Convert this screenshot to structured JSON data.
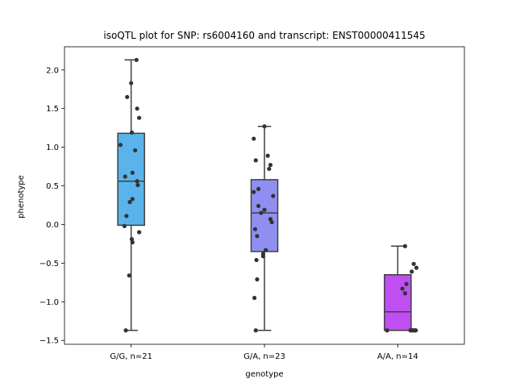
{
  "chart_data": {
    "type": "box",
    "title": "isoQTL plot for SNP: rs6004160 and transcript: ENST00000411545",
    "xlabel": "genotype",
    "ylabel": "phenotype",
    "ylim": [
      -1.55,
      2.3
    ],
    "yticks": [
      -1.5,
      -1.0,
      -0.5,
      0.0,
      0.5,
      1.0,
      1.5,
      2.0
    ],
    "ytick_labels": [
      "−1.5",
      "−1.0",
      "−0.5",
      "0.0",
      "0.5",
      "1.0",
      "1.5",
      "2.0"
    ],
    "grid": false,
    "categories": [
      "G/G, n=21",
      "G/A, n=23",
      "A/A, n=14"
    ],
    "boxes": [
      {
        "label": "G/G, n=21",
        "color": "#5ab4eb",
        "whisker_low": -1.37,
        "q1": -0.01,
        "median": 0.56,
        "q3": 1.18,
        "whisker_high": 2.13,
        "points": [
          {
            "jitter": 0.08,
            "y": 2.13
          },
          {
            "jitter": 0.0,
            "y": 1.83
          },
          {
            "jitter": -0.06,
            "y": 1.65
          },
          {
            "jitter": 0.09,
            "y": 1.5
          },
          {
            "jitter": 0.12,
            "y": 1.38
          },
          {
            "jitter": 0.01,
            "y": 1.19
          },
          {
            "jitter": -0.16,
            "y": 1.03
          },
          {
            "jitter": 0.06,
            "y": 0.96
          },
          {
            "jitter": 0.02,
            "y": 0.67
          },
          {
            "jitter": -0.09,
            "y": 0.62
          },
          {
            "jitter": 0.09,
            "y": 0.56
          },
          {
            "jitter": 0.1,
            "y": 0.51
          },
          {
            "jitter": 0.02,
            "y": 0.33
          },
          {
            "jitter": -0.02,
            "y": 0.29
          },
          {
            "jitter": -0.07,
            "y": 0.11
          },
          {
            "jitter": -0.1,
            "y": -0.02
          },
          {
            "jitter": 0.12,
            "y": -0.1
          },
          {
            "jitter": 0.01,
            "y": -0.19
          },
          {
            "jitter": 0.02,
            "y": -0.23
          },
          {
            "jitter": -0.03,
            "y": -0.66
          },
          {
            "jitter": -0.08,
            "y": -1.37
          }
        ]
      },
      {
        "label": "G/A, n=23",
        "color": "#8f8ff2",
        "whisker_low": -1.37,
        "q1": -0.35,
        "median": 0.15,
        "q3": 0.58,
        "whisker_high": 1.27,
        "points": [
          {
            "jitter": 0.0,
            "y": 1.27
          },
          {
            "jitter": -0.16,
            "y": 1.11
          },
          {
            "jitter": 0.05,
            "y": 0.89
          },
          {
            "jitter": -0.13,
            "y": 0.83
          },
          {
            "jitter": 0.09,
            "y": 0.77
          },
          {
            "jitter": 0.07,
            "y": 0.72
          },
          {
            "jitter": -0.09,
            "y": 0.46
          },
          {
            "jitter": -0.16,
            "y": 0.42
          },
          {
            "jitter": 0.13,
            "y": 0.37
          },
          {
            "jitter": -0.09,
            "y": 0.24
          },
          {
            "jitter": 0.0,
            "y": 0.19
          },
          {
            "jitter": -0.05,
            "y": 0.15
          },
          {
            "jitter": 0.09,
            "y": 0.07
          },
          {
            "jitter": 0.11,
            "y": 0.03
          },
          {
            "jitter": -0.14,
            "y": -0.06
          },
          {
            "jitter": -0.11,
            "y": -0.15
          },
          {
            "jitter": 0.02,
            "y": -0.33
          },
          {
            "jitter": -0.02,
            "y": -0.38
          },
          {
            "jitter": -0.02,
            "y": -0.41
          },
          {
            "jitter": -0.12,
            "y": -0.46
          },
          {
            "jitter": -0.11,
            "y": -0.71
          },
          {
            "jitter": -0.15,
            "y": -0.95
          },
          {
            "jitter": -0.13,
            "y": -1.37
          }
        ]
      },
      {
        "label": "A/A, n=14",
        "color": "#bf4ff2",
        "whisker_low": -1.37,
        "q1": -1.37,
        "median": -1.13,
        "q3": -0.65,
        "whisker_high": -0.28,
        "points": [
          {
            "jitter": 0.11,
            "y": -0.28
          },
          {
            "jitter": 0.24,
            "y": -0.51
          },
          {
            "jitter": 0.28,
            "y": -0.56
          },
          {
            "jitter": 0.21,
            "y": -0.61
          },
          {
            "jitter": 0.13,
            "y": -0.77
          },
          {
            "jitter": 0.07,
            "y": -0.83
          },
          {
            "jitter": 0.11,
            "y": -0.89
          },
          {
            "jitter": -0.16,
            "y": -1.37
          },
          {
            "jitter": 0.19,
            "y": -1.37
          },
          {
            "jitter": 0.21,
            "y": -1.37
          },
          {
            "jitter": 0.24,
            "y": -1.37
          },
          {
            "jitter": 0.26,
            "y": -1.37
          },
          {
            "jitter": 0.27,
            "y": -1.37
          },
          {
            "jitter": 0.22,
            "y": -1.37
          }
        ]
      }
    ]
  }
}
